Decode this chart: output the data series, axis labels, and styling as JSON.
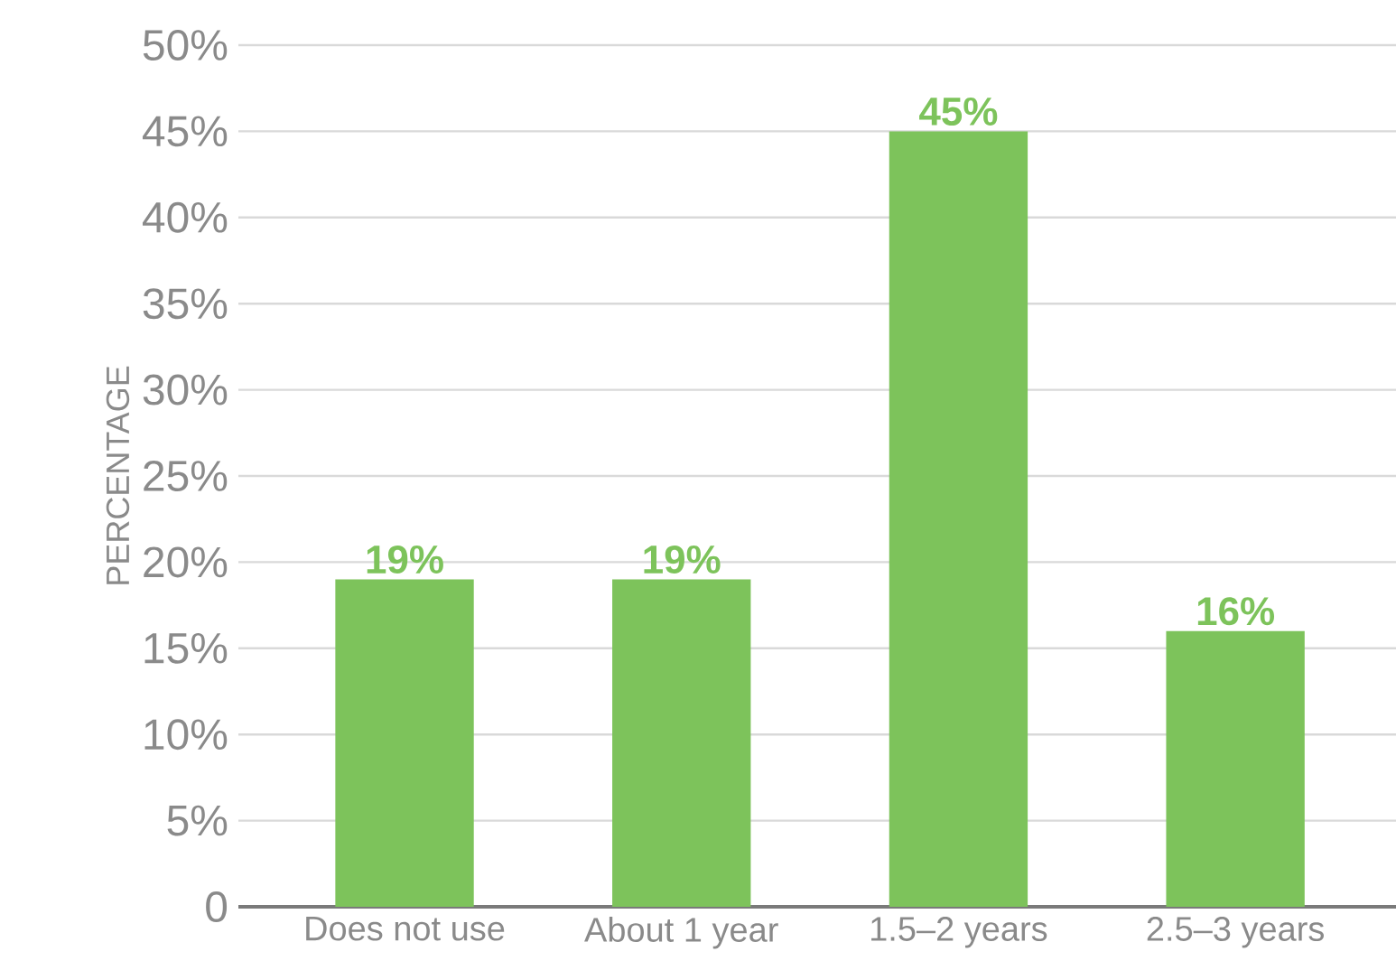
{
  "chart_data": {
    "type": "bar",
    "ylabel": "PERCENTAGE",
    "categories": [
      "Does not use",
      "About 1 year",
      "1.5–2 years",
      "2.5–3 years"
    ],
    "values": [
      19,
      19,
      45,
      16
    ],
    "color": "#7dc35b",
    "value_labels": [
      "19%",
      "19%",
      "45%",
      "16%"
    ],
    "ylim": [
      0,
      50
    ],
    "yticks": [
      0,
      {
        "value": 5,
        "label": "5%"
      },
      {
        "value": 10,
        "label": "10%"
      },
      {
        "value": 15,
        "label": "15%"
      },
      {
        "value": 20,
        "label": "20%"
      },
      {
        "value": 25,
        "label": "25%"
      },
      {
        "value": 30,
        "label": "30%"
      },
      {
        "value": 35,
        "label": "35%"
      },
      {
        "value": 40,
        "label": "40%"
      },
      {
        "value": 45,
        "label": "45%"
      },
      {
        "value": 50,
        "label": "50%"
      }
    ],
    "grid": "y"
  }
}
